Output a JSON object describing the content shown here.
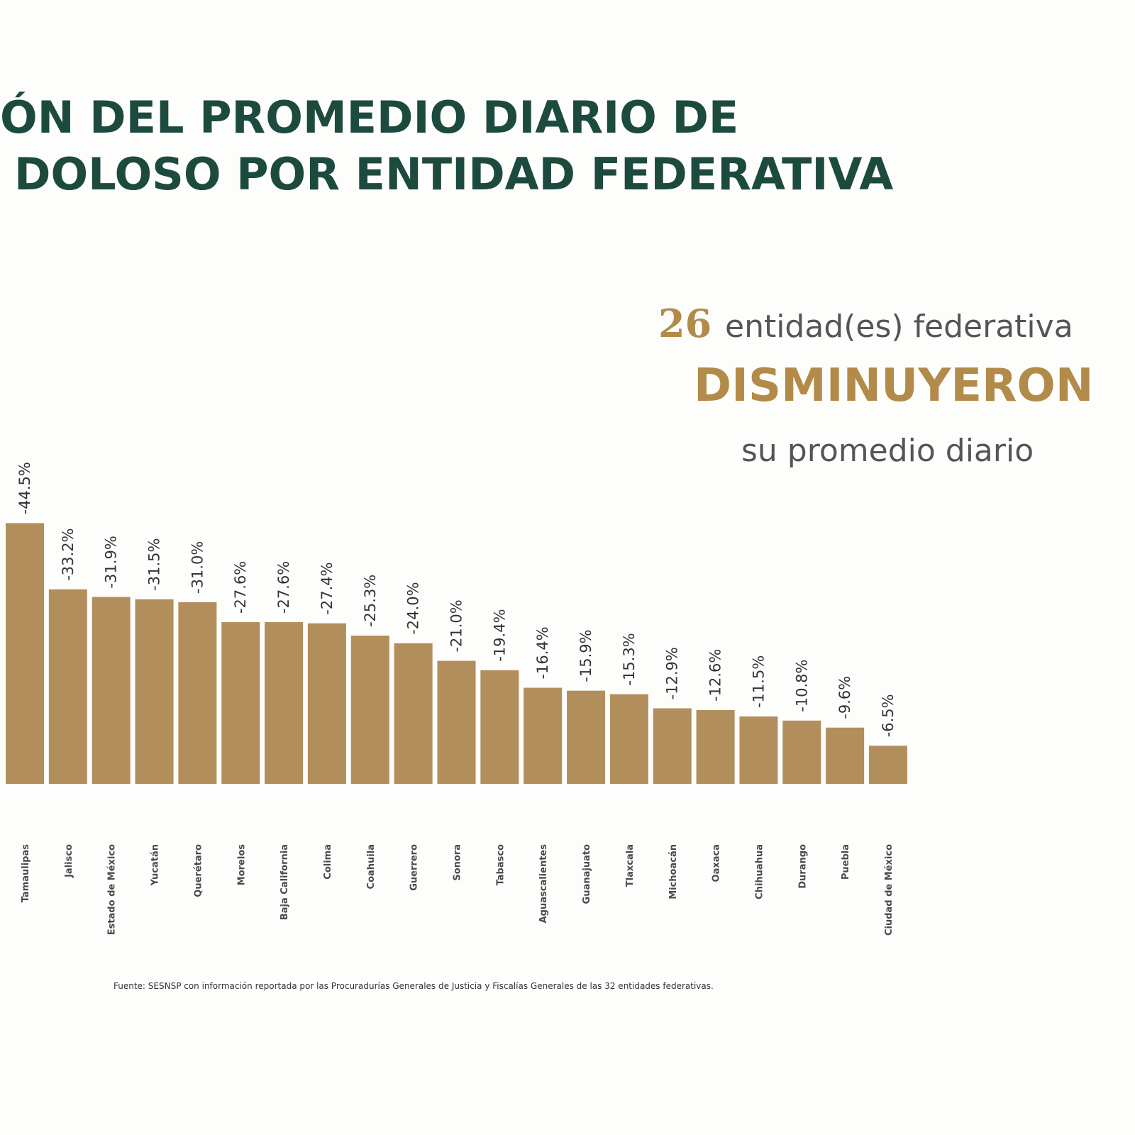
{
  "chart_data": {
    "type": "bar",
    "title_lines": [
      "ÓN DEL PROMEDIO DIARIO DE",
      "DOLOSO POR ENTIDAD FEDERATIVA"
    ],
    "annotation": {
      "number": "26",
      "line1": "entidad(es) federativa",
      "line2": "DISMINUYERON",
      "line3": "su promedio diario"
    },
    "source": "Fuente: SESNSP con información reportada por las Procuradurías Generales de Justicia y Fiscalías Generales de las 32 entidades federativas.",
    "categories": [
      "Tamaulipas",
      "Jalisco",
      "Estado de México",
      "Yucatán",
      "Querétaro",
      "Morelos",
      "Baja California",
      "Colima",
      "Coahuila",
      "Guerrero",
      "Sonora",
      "Tabasco",
      "Aguascalientes",
      "Guanajuato",
      "Tlaxcala",
      "Michoacán",
      "Oaxaca",
      "Chihuahua",
      "Durango",
      "Puebla",
      "Ciudad de México"
    ],
    "values": [
      -44.5,
      -33.2,
      -31.9,
      -31.5,
      -31.0,
      -27.6,
      -27.6,
      -27.4,
      -25.3,
      -24.0,
      -21.0,
      -19.4,
      -16.4,
      -15.9,
      -15.3,
      -12.9,
      -12.6,
      -11.5,
      -10.8,
      -9.6,
      -6.5
    ],
    "value_labels": [
      "-44.5%",
      "-33.2%",
      "-31.9%",
      "-31.5%",
      "-31.0%",
      "-27.6%",
      "-27.6%",
      "-27.4%",
      "-25.3%",
      "-24.0%",
      "-21.0%",
      "-19.4%",
      "-16.4%",
      "-15.9%",
      "-15.3%",
      "-12.9%",
      "-12.6%",
      "-11.5%",
      "-10.8%",
      "-9.6%",
      "-6.5%"
    ],
    "color": "#b28e5c",
    "ylim": [
      0,
      -50
    ]
  }
}
